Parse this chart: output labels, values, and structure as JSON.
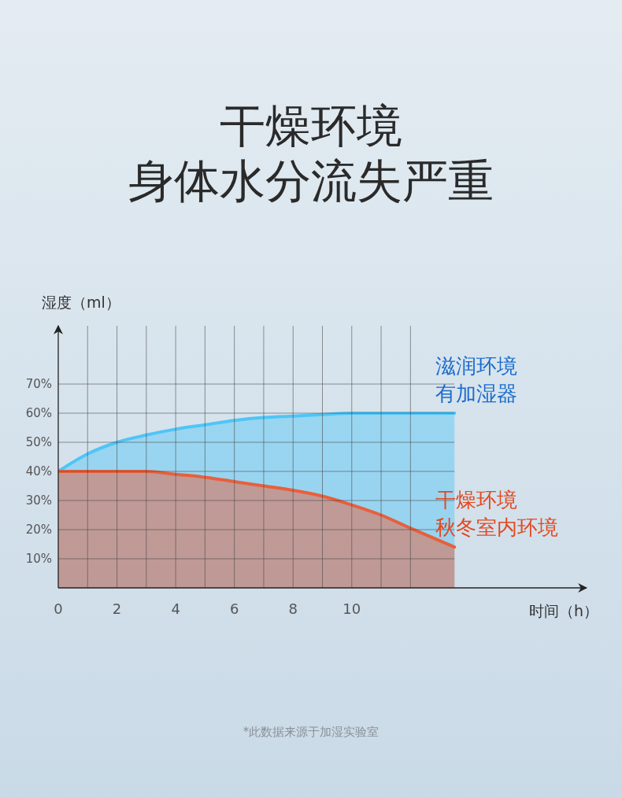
{
  "chart_data": {
    "type": "area",
    "title": "干燥环境",
    "subtitle": "身体水分流失严重",
    "xlabel": "时间（h）",
    "ylabel": "湿度（ml）",
    "x": [
      0,
      1,
      2,
      3,
      4,
      5,
      6,
      7,
      8,
      9,
      10,
      11,
      12,
      13.5
    ],
    "series": [
      {
        "name": "滋润环境有加湿器",
        "color": "#4fc5f7",
        "values": [
          40,
          46,
          50,
          52.5,
          54.5,
          56,
          57.5,
          58.5,
          59,
          59.5,
          60,
          60,
          60,
          60
        ]
      },
      {
        "name": "干燥环境秋冬室内环境",
        "color": "#e8603c",
        "values": [
          40,
          40,
          40,
          40,
          39,
          38,
          36.5,
          35,
          33.5,
          31.5,
          28.5,
          25,
          20.5,
          14
        ]
      }
    ],
    "xlim": [
      0,
      18
    ],
    "xticks": [
      0,
      {
        "value": 1,
        "label": null
      },
      2,
      {
        "value": 3,
        "label": null
      },
      4,
      {
        "value": 5,
        "label": null
      },
      6,
      {
        "value": 7,
        "label": null
      },
      8,
      {
        "value": 9,
        "label": null
      },
      10,
      {
        "value": 11,
        "label": null
      },
      {
        "value": 12,
        "label": null
      }
    ],
    "ylim": [
      0,
      90
    ],
    "yticks": [
      {
        "value": 10,
        "label": "10%"
      },
      {
        "value": 20,
        "label": "20%"
      },
      {
        "value": 30,
        "label": "30%"
      },
      {
        "value": 40,
        "label": "40%"
      },
      {
        "value": 50,
        "label": "50%"
      },
      {
        "value": 60,
        "label": "60%"
      },
      {
        "value": 70,
        "label": "70%"
      }
    ],
    "grid": true,
    "annotations": [
      "*此数据来源于加湿实验室"
    ]
  }
}
